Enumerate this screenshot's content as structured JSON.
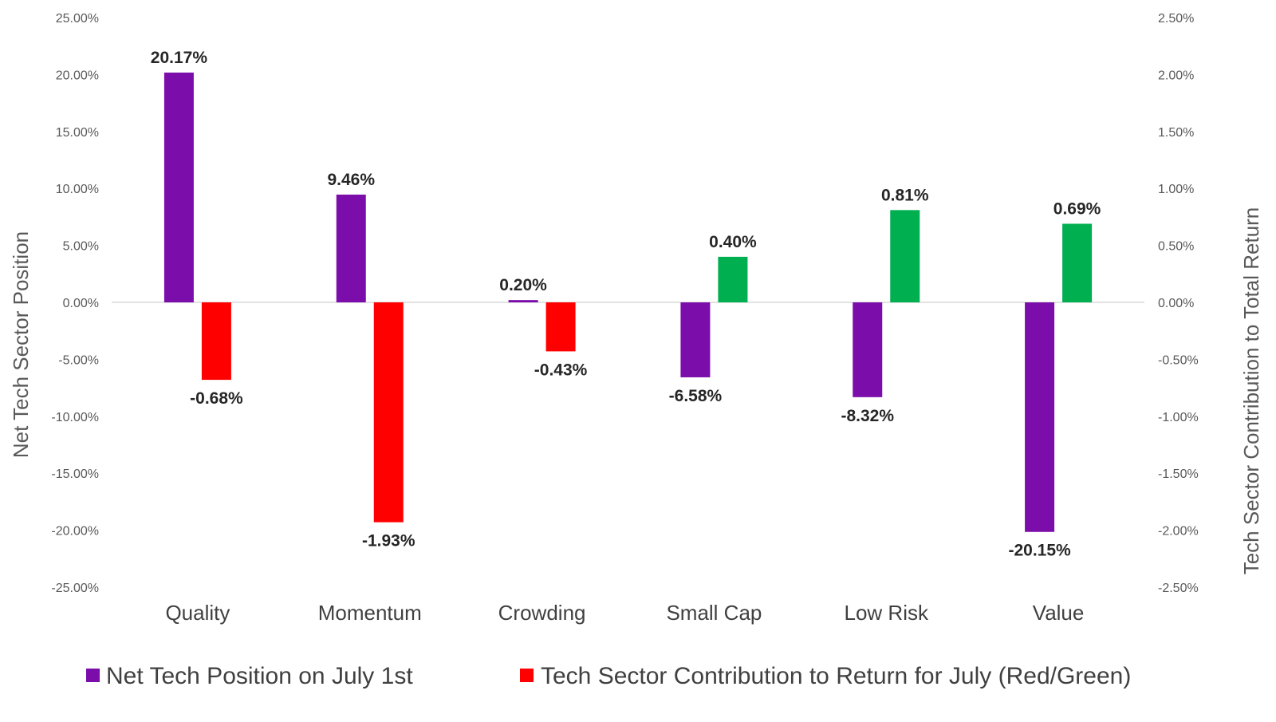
{
  "chart_data": {
    "type": "bar",
    "categories": [
      "Quality",
      "Momentum",
      "Crowding",
      "Small Cap",
      "Low Risk",
      "Value"
    ],
    "series": [
      {
        "name": "Net Tech Position on July 1st",
        "axis": "left",
        "color": "#7b0dab",
        "values": [
          20.17,
          9.46,
          0.2,
          -6.58,
          -8.32,
          -20.15
        ],
        "labels": [
          "20.17%",
          "9.46%",
          "0.20%",
          "-6.58%",
          "-8.32%",
          "-20.15%"
        ]
      },
      {
        "name": "Tech Sector Contribution to Return for July (Red/Green)",
        "axis": "right",
        "color": "#ff0000",
        "positive_color": "#00b050",
        "negative_color": "#ff0000",
        "values": [
          -0.68,
          -1.93,
          -0.43,
          0.4,
          0.81,
          0.69
        ],
        "labels": [
          "-0.68%",
          "-1.93%",
          "-0.43%",
          "0.40%",
          "0.81%",
          "0.69%"
        ]
      }
    ],
    "y_left": {
      "label": "Net Tech Sector Position",
      "ylim": [
        -25,
        25
      ],
      "ticks": [
        "25.00%",
        "20.00%",
        "15.00%",
        "10.00%",
        "5.00%",
        "0.00%",
        "-5.00%",
        "-10.00%",
        "-15.00%",
        "-20.00%",
        "-25.00%"
      ]
    },
    "y_right": {
      "label": "Tech Sector Contribution to Total Return",
      "ylim": [
        -2.5,
        2.5
      ],
      "ticks": [
        "2.50%",
        "2.00%",
        "1.50%",
        "1.00%",
        "0.50%",
        "0.00%",
        "-0.50%",
        "-1.00%",
        "-1.50%",
        "-2.00%",
        "-2.50%"
      ]
    },
    "grid": false,
    "legend_position": "bottom"
  }
}
